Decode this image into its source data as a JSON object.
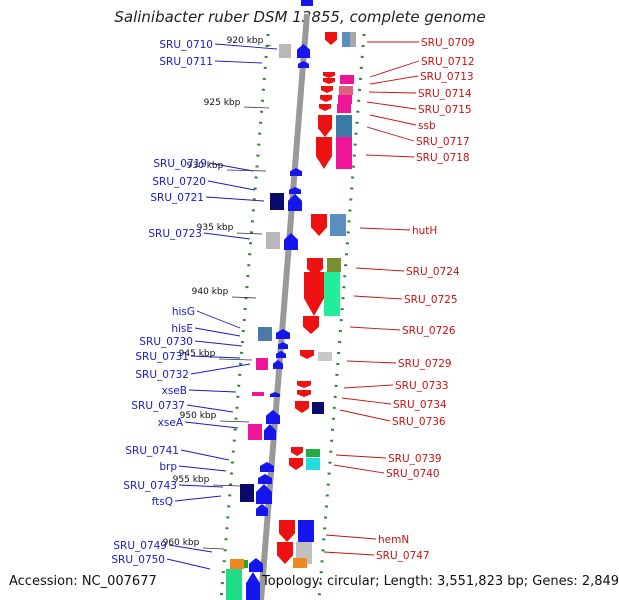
{
  "title": "Salinibacter ruber DSM 13855, complete genome",
  "footer": {
    "accession": "Accession: NC_007677",
    "info": "Topology: circular; Length: 3,551,823 bp; Genes: 2,849"
  },
  "colors": {
    "forward_label": "#1a1acc",
    "reverse_label": "#cc1111",
    "backbone": "#999999",
    "tick_green": "#2a8a2a"
  },
  "ruler_ticks": [
    "920 kbp",
    "925 kbp",
    "930 kbp",
    "935 kbp",
    "940 kbp",
    "945 kbp",
    "950 kbp",
    "955 kbp",
    "960 kbp"
  ],
  "forward_labels": [
    "SRU_0710",
    "SRU_0711",
    "SRU_0719",
    "SRU_0720",
    "SRU_0721",
    "SRU_0723",
    "hisG",
    "hisE",
    "SRU_0730",
    "SRU_0731",
    "SRU_0732",
    "xseB",
    "SRU_0737",
    "xseA",
    "SRU_0741",
    "brp",
    "SRU_0743",
    "ftsQ",
    "SRU_0749",
    "SRU_0750"
  ],
  "reverse_labels": [
    "SRU_0709",
    "SRU_0712",
    "SRU_0713",
    "SRU_0714",
    "SRU_0715",
    "ssb",
    "SRU_0717",
    "SRU_0718",
    "hutH",
    "SRU_0724",
    "SRU_0725",
    "SRU_0726",
    "SRU_0729",
    "SRU_0733",
    "SRU_0734",
    "SRU_0736",
    "SRU_0739",
    "SRU_0740",
    "hemN",
    "SRU_0747"
  ]
}
